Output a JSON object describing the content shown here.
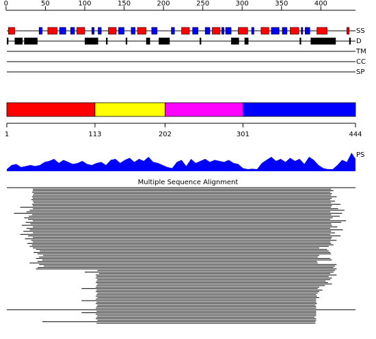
{
  "ruler": {
    "ticks": [
      0,
      50,
      100,
      150,
      200,
      250,
      300,
      350,
      400
    ]
  },
  "secondary_structure": {
    "label": "SS",
    "helix_color": "#ff0000",
    "strand_color": "#0000ff",
    "helices": [
      [
        3,
        11
      ],
      [
        53,
        65
      ],
      [
        90,
        100
      ],
      [
        130,
        140
      ],
      [
        167,
        178
      ],
      [
        223,
        233
      ],
      [
        262,
        272
      ],
      [
        295,
        307
      ],
      [
        324,
        334
      ],
      [
        361,
        372
      ],
      [
        395,
        408
      ],
      [
        433,
        436
      ]
    ],
    "strands": [
      [
        42,
        46
      ],
      [
        68,
        76
      ],
      [
        82,
        87
      ],
      [
        109,
        112
      ],
      [
        117,
        121
      ],
      [
        143,
        150
      ],
      [
        159,
        164
      ],
      [
        185,
        192
      ],
      [
        210,
        214
      ],
      [
        237,
        244
      ],
      [
        253,
        259
      ],
      [
        274,
        277
      ],
      [
        279,
        286
      ],
      [
        312,
        315
      ],
      [
        337,
        347
      ],
      [
        351,
        357
      ],
      [
        375,
        377
      ],
      [
        380,
        386
      ]
    ]
  },
  "disorder": {
    "label": "D",
    "color": "#000000",
    "regions": [
      [
        1,
        3
      ],
      [
        11,
        21
      ],
      [
        23,
        40
      ],
      [
        100,
        117
      ],
      [
        127,
        129
      ],
      [
        152,
        154
      ],
      [
        178,
        183
      ],
      [
        194,
        208
      ],
      [
        246,
        248
      ],
      [
        286,
        296
      ],
      [
        303,
        308
      ],
      [
        373,
        375
      ],
      [
        387,
        419
      ],
      [
        436,
        438
      ]
    ]
  },
  "empty_tracks": [
    "TM",
    "CC",
    "SP"
  ],
  "domains": {
    "boundaries": [
      1,
      113,
      202,
      301,
      444
    ],
    "colors": [
      "#ff0000",
      "#ffff00",
      "#ff00ff",
      "#0000ff"
    ]
  },
  "ps": {
    "label": "PS",
    "color": "#0000ff",
    "ylim": [
      0,
      1
    ],
    "positions": [
      1,
      7,
      13,
      19,
      25,
      31,
      37,
      43,
      49,
      55,
      61,
      67,
      73,
      79,
      85,
      91,
      97,
      103,
      109,
      115,
      121,
      127,
      133,
      139,
      145,
      151,
      157,
      163,
      169,
      175,
      181,
      187,
      193,
      199,
      205,
      211,
      217,
      223,
      229,
      235,
      241,
      247,
      253,
      259,
      265,
      271,
      277,
      283,
      289,
      295,
      301,
      307,
      313,
      319,
      325,
      331,
      337,
      343,
      349,
      355,
      361,
      367,
      373,
      379,
      385,
      391,
      397,
      403,
      409,
      415,
      421,
      427,
      433,
      439,
      444
    ],
    "values": [
      0.1,
      0.3,
      0.35,
      0.2,
      0.25,
      0.3,
      0.25,
      0.3,
      0.45,
      0.5,
      0.6,
      0.4,
      0.55,
      0.45,
      0.35,
      0.4,
      0.5,
      0.35,
      0.3,
      0.4,
      0.45,
      0.3,
      0.55,
      0.6,
      0.4,
      0.55,
      0.65,
      0.45,
      0.6,
      0.5,
      0.7,
      0.45,
      0.4,
      0.3,
      0.2,
      0.15,
      0.45,
      0.55,
      0.25,
      0.6,
      0.4,
      0.5,
      0.6,
      0.45,
      0.55,
      0.5,
      0.45,
      0.55,
      0.4,
      0.35,
      0.15,
      0.1,
      0.12,
      0.1,
      0.4,
      0.55,
      0.7,
      0.5,
      0.6,
      0.45,
      0.65,
      0.5,
      0.6,
      0.35,
      0.7,
      0.55,
      0.3,
      0.15,
      0.1,
      0.1,
      0.3,
      0.55,
      0.45,
      0.9,
      0.6
    ]
  },
  "msa": {
    "title": "Multiple Sequence Alignment",
    "alignments": [
      [
        1,
        444
      ],
      [
        34,
        413
      ],
      [
        34,
        416
      ],
      [
        33,
        412
      ],
      [
        35,
        414
      ],
      [
        34,
        413
      ],
      [
        33,
        420
      ],
      [
        34,
        414
      ],
      [
        32,
        412
      ],
      [
        34,
        418
      ],
      [
        35,
        413
      ],
      [
        33,
        425
      ],
      [
        34,
        414
      ],
      [
        18,
        413
      ],
      [
        34,
        422
      ],
      [
        30,
        430
      ],
      [
        26,
        412
      ],
      [
        10,
        427
      ],
      [
        33,
        413
      ],
      [
        29,
        424
      ],
      [
        23,
        415
      ],
      [
        28,
        412
      ],
      [
        34,
        432
      ],
      [
        25,
        426
      ],
      [
        31,
        413
      ],
      [
        20,
        414
      ],
      [
        34,
        421
      ],
      [
        26,
        412
      ],
      [
        30,
        428
      ],
      [
        22,
        413
      ],
      [
        34,
        418
      ],
      [
        18,
        412
      ],
      [
        28,
        425
      ],
      [
        34,
        414
      ],
      [
        24,
        413
      ],
      [
        32,
        420
      ],
      [
        34,
        412
      ],
      [
        27,
        413
      ],
      [
        33,
        416
      ],
      [
        30,
        410
      ],
      [
        34,
        398
      ],
      [
        38,
        408
      ],
      [
        43,
        410
      ],
      [
        35,
        412
      ],
      [
        40,
        413
      ],
      [
        47,
        398
      ],
      [
        42,
        396
      ],
      [
        38,
        412
      ],
      [
        46,
        414
      ],
      [
        40,
        395
      ],
      [
        30,
        396
      ],
      [
        42,
        420
      ],
      [
        48,
        418
      ],
      [
        40,
        416
      ],
      [
        38,
        420
      ],
      [
        116,
        418
      ],
      [
        100,
        416
      ],
      [
        118,
        412
      ],
      [
        114,
        420
      ],
      [
        115,
        410
      ],
      [
        114,
        414
      ],
      [
        116,
        412
      ],
      [
        115,
        406
      ],
      [
        114,
        409
      ],
      [
        116,
        414
      ],
      [
        115,
        405
      ],
      [
        114,
        398
      ],
      [
        96,
        396
      ],
      [
        115,
        402
      ],
      [
        114,
        398
      ],
      [
        116,
        396
      ],
      [
        115,
        394
      ],
      [
        114,
        395
      ],
      [
        116,
        398
      ],
      [
        114,
        394
      ],
      [
        96,
        394
      ],
      [
        115,
        394
      ],
      [
        114,
        395
      ],
      [
        116,
        393
      ],
      [
        115,
        394
      ],
      [
        114,
        394
      ],
      [
        1,
        444
      ],
      [
        115,
        394
      ],
      [
        96,
        394
      ],
      [
        114,
        394
      ],
      [
        116,
        394
      ],
      [
        115,
        392
      ],
      [
        114,
        394
      ],
      [
        116,
        394
      ],
      [
        46,
        393
      ],
      [
        115,
        393
      ]
    ]
  }
}
